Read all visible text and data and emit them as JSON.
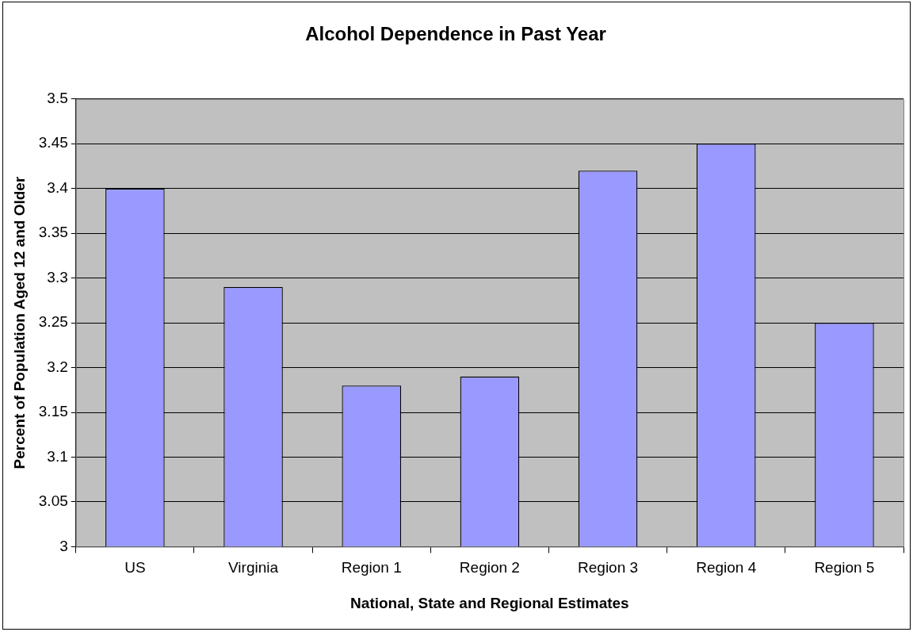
{
  "chart_data": {
    "type": "bar",
    "title": "Alcohol Dependence in Past Year",
    "xlabel": "National, State and Regional Estimates",
    "ylabel": "Percent of Population Aged 12 and Older",
    "categories": [
      "US",
      "Virginia",
      "Region 1",
      "Region 2",
      "Region 3",
      "Region 4",
      "Region 5"
    ],
    "values": [
      3.4,
      3.29,
      3.18,
      3.19,
      3.42,
      3.45,
      3.25
    ],
    "color": "#9999ff",
    "ylim": [
      3,
      3.5
    ],
    "yticks": [
      3,
      3.05,
      3.1,
      3.15,
      3.2,
      3.25,
      3.3,
      3.35,
      3.4,
      3.45,
      3.5
    ],
    "grid": "y",
    "legend": false
  }
}
